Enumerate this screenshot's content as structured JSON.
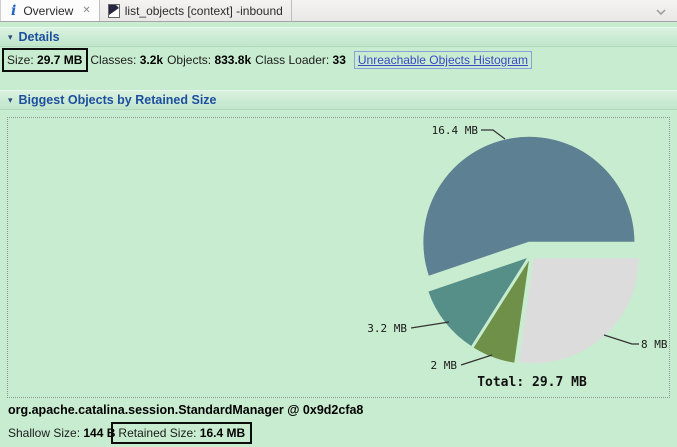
{
  "window": {
    "tabs": [
      {
        "label": "Overview",
        "active": true
      },
      {
        "label": "list_objects [context] -inbound",
        "active": false
      }
    ]
  },
  "details": {
    "title": "Details",
    "stats": [
      {
        "label": "Size: ",
        "value": "29.7 MB"
      },
      {
        "label": "Classes: ",
        "value": "3.2k"
      },
      {
        "label": "Objects: ",
        "value": "833.8k"
      },
      {
        "label": "Class Loader: ",
        "value": "33"
      }
    ],
    "link_label": "Unreachable Objects Histogram"
  },
  "biggest": {
    "title": "Biggest Objects by Retained Size"
  },
  "chart_data": {
    "type": "pie",
    "title": "Biggest Objects by Retained Size",
    "total_mb": 29.7,
    "total_label": "Total: 29.7 MB",
    "background": "#c8eccf",
    "legend_position": "none",
    "slices": [
      {
        "label": "8 MB",
        "mb": 8.1,
        "color": "#dcdcdc",
        "selected": false
      },
      {
        "label": "2 MB",
        "mb": 2.0,
        "color": "#6e9048",
        "selected": false
      },
      {
        "label": "3.2 MB",
        "mb": 3.2,
        "color": "#568e88",
        "selected": false
      },
      {
        "label": "16.4 MB",
        "mb": 16.4,
        "color": "#5d8093",
        "selected": true
      }
    ]
  },
  "selection": {
    "object": "org.apache.catalina.session.StandardManager @ 0x9d2cfa8",
    "shallow_label": "Shallow Size: ",
    "shallow_value": "144 B",
    "retained_label": "Retained Size: ",
    "retained_value": "16.4 MB"
  },
  "icons": {
    "info": "i",
    "close": "✕",
    "section_triangle": "▾"
  }
}
